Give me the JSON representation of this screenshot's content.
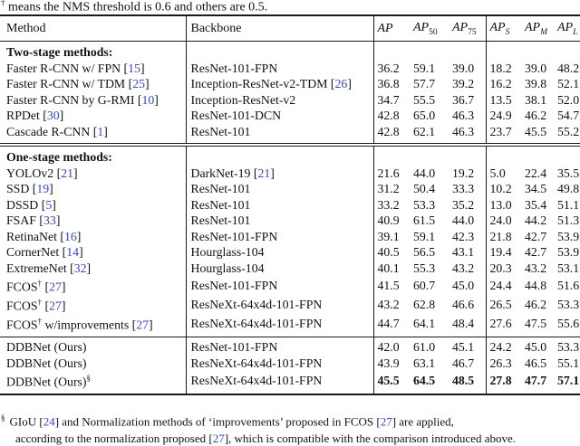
{
  "colors": {
    "citation": "#3a46c4",
    "text": "#111111",
    "rule": "#1a1a1a"
  },
  "caption_partial": {
    "marker": "†",
    "text": "means the NMS threshold is 0.6 and others are 0.5."
  },
  "table": {
    "columns": {
      "method": "Method",
      "backbone": "Backbone",
      "metrics": [
        {
          "main": "AP",
          "sub": ""
        },
        {
          "main": "AP",
          "sub": "50"
        },
        {
          "main": "AP",
          "sub": "75"
        },
        {
          "main": "AP",
          "sub": "S"
        },
        {
          "main": "AP",
          "sub": "M"
        },
        {
          "main": "AP",
          "sub": "L"
        }
      ]
    },
    "sections": [
      {
        "id": "two-stage",
        "header": "Two-stage methods:",
        "rows": [
          {
            "method": "Faster R-CNN w/ FPN",
            "sup": "",
            "post": "",
            "cite": "15",
            "backbone": "ResNet-101-FPN",
            "backbone_cite": "",
            "values": [
              "36.2",
              "59.1",
              "39.0",
              "18.2",
              "39.0",
              "48.2"
            ],
            "bold": false
          },
          {
            "method": "Faster R-CNN w/ TDM",
            "sup": "",
            "post": "",
            "cite": "25",
            "backbone": "Inception-ResNet-v2-TDM",
            "backbone_cite": "26",
            "values": [
              "36.8",
              "57.7",
              "39.2",
              "16.2",
              "39.8",
              "52.1"
            ],
            "bold": false
          },
          {
            "method": "Faster R-CNN by G-RMI",
            "sup": "",
            "post": "",
            "cite": "10",
            "backbone": "Inception-ResNet-v2",
            "backbone_cite": "",
            "values": [
              "34.7",
              "55.5",
              "36.7",
              "13.5",
              "38.1",
              "52.0"
            ],
            "bold": false
          },
          {
            "method": "RPDet",
            "sup": "",
            "post": "",
            "cite": "30",
            "backbone": "ResNet-101-DCN",
            "backbone_cite": "",
            "values": [
              "42.8",
              "65.0",
              "46.3",
              "24.9",
              "46.2",
              "54.7"
            ],
            "bold": false
          },
          {
            "method": "Cascade R-CNN",
            "sup": "",
            "post": "",
            "cite": "1",
            "backbone": "ResNet-101",
            "backbone_cite": "",
            "values": [
              "42.8",
              "62.1",
              "46.3",
              "23.7",
              "45.5",
              "55.2"
            ],
            "bold": false
          }
        ]
      },
      {
        "id": "one-stage",
        "header": "One-stage methods:",
        "rows": [
          {
            "method": "YOLOv2",
            "sup": "",
            "post": "",
            "cite": "21",
            "backbone": "DarkNet-19",
            "backbone_cite": "21",
            "values": [
              "21.6",
              "44.0",
              "19.2",
              "5.0",
              "22.4",
              "35.5"
            ],
            "bold": false
          },
          {
            "method": "SSD",
            "sup": "",
            "post": "",
            "cite": "19",
            "backbone": "ResNet-101",
            "backbone_cite": "",
            "values": [
              "31.2",
              "50.4",
              "33.3",
              "10.2",
              "34.5",
              "49.8"
            ],
            "bold": false
          },
          {
            "method": "DSSD",
            "sup": "",
            "post": "",
            "cite": "5",
            "backbone": "ResNet-101",
            "backbone_cite": "",
            "values": [
              "33.2",
              "53.3",
              "35.2",
              "13.0",
              "35.4",
              "51.1"
            ],
            "bold": false
          },
          {
            "method": "FSAF",
            "sup": "",
            "post": "",
            "cite": "33",
            "backbone": "ResNet-101",
            "backbone_cite": "",
            "values": [
              "40.9",
              "61.5",
              "44.0",
              "24.0",
              "44.2",
              "51.3"
            ],
            "bold": false
          },
          {
            "method": "RetinaNet",
            "sup": "",
            "post": "",
            "cite": "16",
            "backbone": "ResNet-101-FPN",
            "backbone_cite": "",
            "values": [
              "39.1",
              "59.1",
              "42.3",
              "21.8",
              "42.7",
              "53.9"
            ],
            "bold": false
          },
          {
            "method": "CornerNet",
            "sup": "",
            "post": "",
            "cite": "14",
            "backbone": "Hourglass-104",
            "backbone_cite": "",
            "values": [
              "40.5",
              "56.5",
              "43.1",
              "19.4",
              "42.7",
              "53.9"
            ],
            "bold": false
          },
          {
            "method": "ExtremeNet",
            "sup": "",
            "post": "",
            "cite": "32",
            "backbone": "Hourglass-104",
            "backbone_cite": "",
            "values": [
              "40.1",
              "55.3",
              "43.2",
              "20.3",
              "43.2",
              "53.1"
            ],
            "bold": false
          },
          {
            "method": "FCOS",
            "sup": "†",
            "post": "",
            "cite": "27",
            "backbone": "ResNet-101-FPN",
            "backbone_cite": "",
            "values": [
              "41.5",
              "60.7",
              "45.0",
              "24.4",
              "44.8",
              "51.6"
            ],
            "bold": false
          },
          {
            "method": "FCOS",
            "sup": "†",
            "post": "",
            "cite": "27",
            "backbone": "ResNeXt-64x4d-101-FPN",
            "backbone_cite": "",
            "values": [
              "43.2",
              "62.8",
              "46.6",
              "26.5",
              "46.2",
              "53.3"
            ],
            "bold": false
          },
          {
            "method": "FCOS",
            "sup": "†",
            "post": " w/improvements",
            "cite": "27",
            "backbone": "ResNeXt-64x4d-101-FPN",
            "backbone_cite": "",
            "values": [
              "44.7",
              "64.1",
              "48.4",
              "27.6",
              "47.5",
              "55.6"
            ],
            "bold": false
          }
        ]
      },
      {
        "id": "ours",
        "header": "",
        "rows": [
          {
            "method": "DDBNet (Ours)",
            "sup": "",
            "post": "",
            "cite": "",
            "backbone": "ResNet-101-FPN",
            "backbone_cite": "",
            "values": [
              "42.0",
              "61.0",
              "45.1",
              "24.2",
              "45.0",
              "53.3"
            ],
            "bold": false
          },
          {
            "method": "DDBNet (Ours)",
            "sup": "",
            "post": "",
            "cite": "",
            "backbone": "ResNeXt-64x4d-101-FPN",
            "backbone_cite": "",
            "values": [
              "43.9",
              "63.1",
              "46.7",
              "26.3",
              "46.5",
              "55.1"
            ],
            "bold": false
          },
          {
            "method": "DDBNet (Ours)",
            "sup": "§",
            "post": "",
            "cite": "",
            "backbone": "ResNeXt-64x4d-101-FPN",
            "backbone_cite": "",
            "values": [
              "45.5",
              "64.5",
              "48.5",
              "27.8",
              "47.7",
              "57.1"
            ],
            "bold": true
          }
        ]
      }
    ]
  },
  "footnote": {
    "marker": "§",
    "line1": [
      {
        "text": "GIoU ["
      },
      {
        "cite": "24"
      },
      {
        "text": "] and Normalization methods of ‘improvements’ proposed in FCOS ["
      },
      {
        "cite": "27"
      },
      {
        "text": "] are applied,"
      }
    ],
    "line2_partial": [
      {
        "text": "according to the normalization proposed ["
      },
      {
        "cite": "27"
      },
      {
        "text": "], which is compatible with the comparison introduced above."
      }
    ]
  }
}
